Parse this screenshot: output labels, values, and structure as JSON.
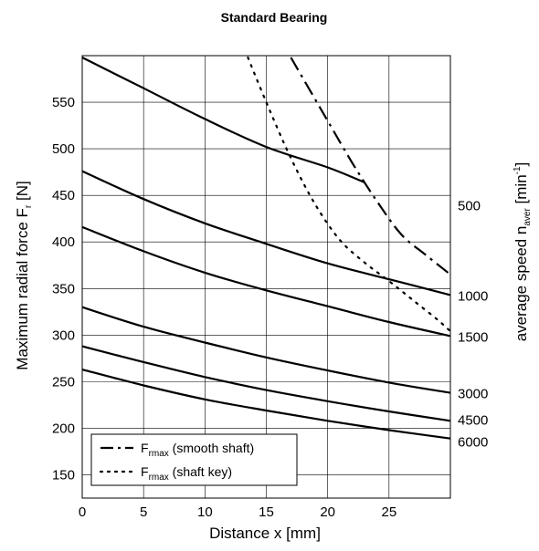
{
  "chart_data": {
    "type": "line",
    "title": "Standard Bearing",
    "xlabel": "Distance x [mm]",
    "ylabel": "Maximum radial force F",
    "ylabel_sub": "r",
    "ylabel_unit": " [N]",
    "y2label_main": "average speed n",
    "y2label_sub": "aver",
    "y2label_unit": " [min",
    "y2label_sup": "-1",
    "y2label_close": "]",
    "xlim": [
      0,
      30
    ],
    "ylim": [
      125,
      600
    ],
    "xticks": [
      0,
      5,
      10,
      15,
      20,
      25
    ],
    "yticks": [
      150,
      200,
      250,
      300,
      350,
      400,
      450,
      500,
      550
    ],
    "grid": true,
    "series": [
      {
        "name": "500",
        "style": "solid",
        "x": [
          0,
          5,
          10,
          15,
          20,
          23
        ],
        "y": [
          598,
          565,
          532,
          502,
          480,
          464
        ]
      },
      {
        "name": "1000",
        "style": "solid",
        "x": [
          0,
          5,
          10,
          15,
          20,
          25,
          30
        ],
        "y": [
          476,
          446,
          420,
          398,
          377,
          360,
          343
        ]
      },
      {
        "name": "1500",
        "style": "solid",
        "x": [
          0,
          5,
          10,
          15,
          20,
          25,
          30
        ],
        "y": [
          416,
          390,
          367,
          348,
          331,
          314,
          299
        ]
      },
      {
        "name": "3000",
        "style": "solid",
        "x": [
          0,
          5,
          10,
          15,
          20,
          25,
          30
        ],
        "y": [
          330,
          309,
          292,
          276,
          262,
          249,
          238
        ]
      },
      {
        "name": "4500",
        "style": "solid",
        "x": [
          0,
          5,
          10,
          15,
          20,
          25,
          30
        ],
        "y": [
          288,
          271,
          255,
          241,
          229,
          218,
          208
        ]
      },
      {
        "name": "6000",
        "style": "solid",
        "x": [
          0,
          5,
          10,
          15,
          20,
          25,
          30
        ],
        "y": [
          263,
          246,
          231,
          219,
          208,
          198,
          189
        ]
      },
      {
        "name": "smooth shaft",
        "style": "dashdot",
        "x": [
          17,
          20,
          22,
          24,
          26,
          28,
          30
        ],
        "y": [
          598,
          530,
          485,
          444,
          408,
          386,
          365
        ]
      },
      {
        "name": "shaft key",
        "style": "dotted",
        "x": [
          13.5,
          15,
          17,
          19,
          21,
          23,
          25,
          27,
          29,
          30
        ],
        "y": [
          598,
          550,
          490,
          440,
          402,
          378,
          358,
          337,
          316,
          304
        ]
      }
    ],
    "right_labels": [
      "500",
      "1000",
      "1500",
      "3000",
      "4500",
      "6000"
    ],
    "legend": {
      "position": "bottom-left",
      "items": [
        {
          "main": "F",
          "sub": "rmax",
          "text": " (smooth shaft)",
          "style": "dashdot"
        },
        {
          "main": "F",
          "sub": "rmax",
          "text": " (shaft key)",
          "style": "dotted"
        }
      ]
    }
  }
}
